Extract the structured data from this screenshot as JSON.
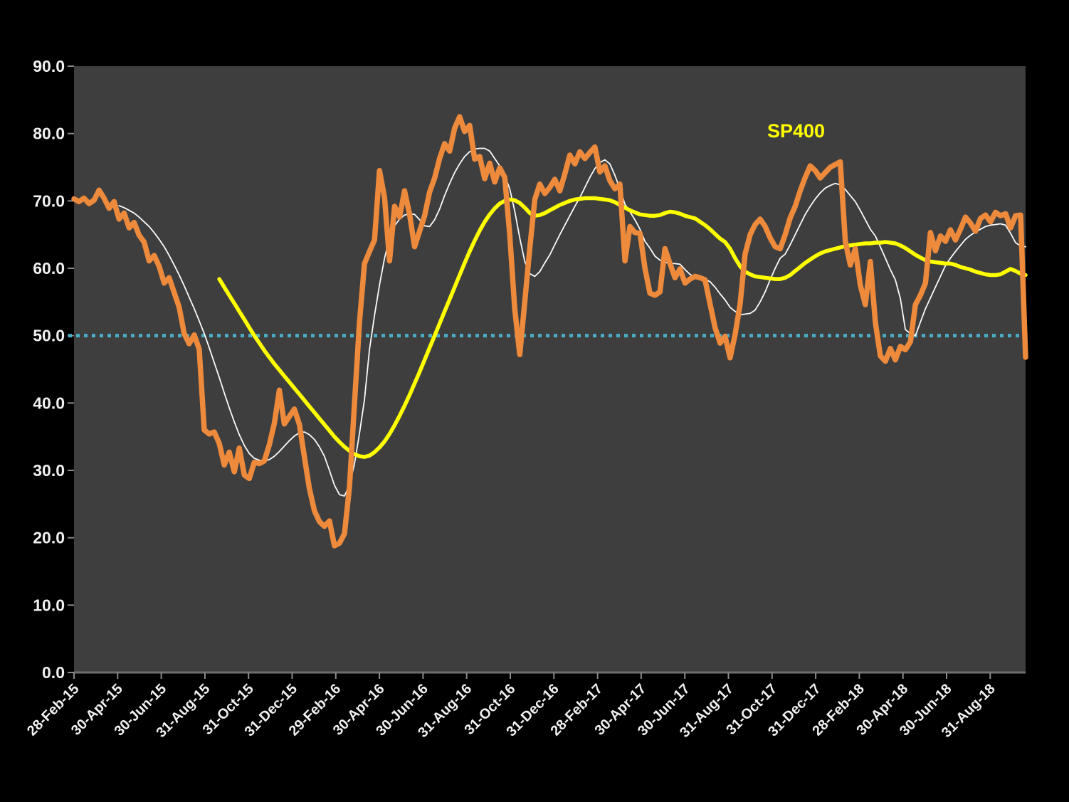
{
  "background": {
    "outer": "#000000",
    "plot": "#3E3E3E"
  },
  "axis": {
    "tick_color": "#8a8a8a",
    "axis_line_color": "#6e6e6e",
    "label_color": "#f0f0f0"
  },
  "chart_data": {
    "type": "line",
    "title": "",
    "xlabel": "",
    "ylabel": "",
    "x_unit": "weekly points starting 28-Feb-15",
    "ylim": [
      0,
      90
    ],
    "grid": false,
    "y_tick_labels": [
      "0.0",
      "10.0",
      "20.0",
      "30.0",
      "40.0",
      "50.0",
      "60.0",
      "70.0",
      "80.0",
      "90.0"
    ],
    "x_tick_labels": [
      "28-Feb-15",
      "30-Apr-15",
      "30-Jun-15",
      "31-Aug-15",
      "31-Oct-15",
      "31-Dec-15",
      "29-Feb-16",
      "30-Apr-16",
      "30-Jun-16",
      "31-Aug-16",
      "31-Oct-16",
      "31-Dec-16",
      "28-Feb-17",
      "30-Apr-17",
      "30-Jun-17",
      "31-Aug-17",
      "31-Oct-17",
      "31-Dec-17",
      "28-Feb-18",
      "30-Apr-18",
      "30-Jun-18",
      "31-Aug-18"
    ],
    "series_label": {
      "text": "SP400",
      "color": "#FFFF00"
    },
    "reference_line": {
      "value": 50.0,
      "color": "#4BACC6",
      "style": "dotted"
    },
    "series": [
      {
        "name": "orange_weekly_indicator",
        "color": "#ED8A3C",
        "stroke_width": 7.5,
        "start_week": 0,
        "values": [
          70.3,
          69.9,
          70.4,
          69.6,
          70.1,
          71.6,
          70.4,
          68.9,
          69.9,
          67.3,
          68.2,
          66.0,
          66.8,
          64.9,
          63.9,
          61.1,
          61.9,
          60.3,
          57.8,
          58.6,
          56.4,
          54.2,
          50.3,
          48.8,
          50.1,
          48.0,
          36.0,
          35.4,
          35.7,
          34.0,
          30.8,
          32.7,
          29.8,
          33.3,
          29.3,
          28.8,
          31.2,
          31.0,
          31.4,
          33.8,
          37.0,
          41.9,
          36.9,
          38.0,
          39.1,
          36.8,
          32.0,
          27.3,
          24.0,
          22.4,
          21.7,
          22.5,
          18.8,
          19.2,
          20.6,
          27.5,
          40.0,
          52.0,
          60.7,
          62.5,
          64.2,
          74.5,
          70.5,
          61.1,
          69.2,
          67.6,
          71.5,
          68.0,
          63.2,
          65.5,
          67.8,
          71.3,
          73.4,
          76.3,
          78.5,
          77.4,
          80.8,
          82.5,
          80.3,
          81.2,
          76.2,
          76.6,
          73.3,
          75.6,
          72.8,
          74.9,
          73.5,
          65.0,
          54.0,
          47.2,
          55.0,
          63.0,
          70.2,
          72.5,
          71.1,
          72.0,
          73.2,
          71.5,
          74.0,
          76.8,
          75.5,
          77.3,
          76.3,
          77.2,
          78.0,
          74.3,
          75.2,
          73.0,
          71.8,
          72.5,
          61.1,
          66.2,
          65.3,
          65.2,
          60.0,
          56.3,
          56.0,
          56.5,
          62.9,
          60.7,
          58.6,
          59.9,
          57.8,
          58.4,
          58.8,
          58.6,
          58.3,
          54.7,
          51.2,
          48.9,
          49.9,
          46.7,
          50.2,
          54.7,
          62.1,
          65.0,
          66.5,
          67.3,
          66.2,
          64.5,
          63.2,
          62.9,
          65.0,
          67.5,
          69.2,
          71.5,
          73.5,
          75.2,
          74.5,
          73.4,
          74.2,
          75.0,
          75.4,
          75.8,
          64.0,
          60.5,
          62.9,
          57.5,
          54.6,
          61.0,
          52.0,
          47.0,
          46.2,
          48.1,
          46.4,
          48.4,
          47.9,
          49.1,
          54.6,
          56.0,
          57.8,
          65.3,
          62.6,
          64.8,
          64.0,
          65.7,
          64.2,
          65.8,
          67.6,
          66.7,
          65.5,
          67.4,
          67.9,
          66.9,
          68.3,
          67.8,
          68.1,
          66.0,
          67.8,
          67.9,
          46.8
        ]
      },
      {
        "name": "white_moving_average",
        "color": "#FAFAFA",
        "stroke_width": 1.8,
        "start_week": 9,
        "values": [
          69.3,
          69.0,
          68.6,
          68.2,
          67.6,
          66.9,
          66.2,
          65.3,
          64.3,
          63.2,
          61.9,
          60.5,
          59.0,
          57.4,
          55.7,
          54.0,
          52.2,
          50.3,
          48.2,
          46.0,
          43.8,
          41.5,
          39.3,
          37.2,
          35.3,
          33.7,
          32.5,
          31.8,
          31.5,
          31.4,
          31.6,
          32.1,
          32.8,
          33.6,
          34.4,
          35.1,
          35.6,
          35.7,
          35.3,
          34.6,
          33.5,
          32.1,
          30.0,
          27.8,
          26.4,
          26.2,
          27.8,
          31.0,
          35.5,
          40.5,
          48.0,
          53.0,
          57.5,
          61.5,
          64.5,
          66.3,
          67.3,
          67.9,
          68.1,
          68.0,
          67.2,
          66.3,
          66.2,
          67.2,
          68.8,
          70.8,
          72.6,
          74.2,
          75.5,
          76.6,
          77.3,
          77.7,
          77.8,
          77.8,
          77.4,
          76.3,
          75.2,
          73.8,
          71.8,
          68.5,
          64.5,
          61.0,
          59.2,
          58.8,
          59.5,
          60.8,
          62.0,
          63.5,
          65.0,
          66.4,
          67.8,
          69.2,
          70.5,
          72.0,
          73.5,
          74.8,
          75.7,
          76.1,
          75.5,
          73.8,
          71.8,
          69.5,
          68.4,
          67.2,
          65.8,
          64.0,
          63.0,
          61.8,
          61.2,
          60.9,
          60.7,
          60.7,
          60.6,
          59.8,
          59.1,
          58.6,
          58.5,
          58.4,
          58.0,
          57.2,
          56.2,
          55.3,
          54.2,
          53.6,
          53.1,
          53.2,
          53.3,
          53.8,
          55.0,
          56.5,
          58.3,
          60.0,
          61.5,
          62.1,
          63.5,
          65.0,
          66.5,
          68.0,
          69.2,
          70.3,
          71.2,
          71.9,
          72.3,
          72.6,
          72.4,
          71.7,
          70.8,
          69.9,
          68.6,
          67.2,
          65.8,
          64.8,
          63.2,
          61.5,
          59.8,
          58.3,
          55.5,
          50.9,
          50.3,
          50.0,
          52.0,
          54.0,
          55.6,
          57.2,
          58.8,
          60.4,
          61.5,
          62.5,
          63.4,
          64.3,
          64.9,
          65.4,
          65.8,
          66.2,
          66.4,
          66.5,
          66.6,
          66.4,
          65.2,
          63.8,
          63.3,
          63.2
        ]
      },
      {
        "name": "sp400_long_average",
        "label": "SP400",
        "color": "#FFFF00",
        "stroke_width": 5.5,
        "start_week": 29,
        "values": [
          58.4,
          57.2,
          56.0,
          54.8,
          53.6,
          52.4,
          51.2,
          50.0,
          48.9,
          47.8,
          46.8,
          45.8,
          44.9,
          44.0,
          43.1,
          42.2,
          41.3,
          40.4,
          39.5,
          38.6,
          37.7,
          36.8,
          35.9,
          35.0,
          34.2,
          33.5,
          32.9,
          32.4,
          32.1,
          32.0,
          32.2,
          32.7,
          33.4,
          34.3,
          35.4,
          36.7,
          38.1,
          39.6,
          41.2,
          42.9,
          44.6,
          46.4,
          48.2,
          50.0,
          51.8,
          53.6,
          55.4,
          57.2,
          59.0,
          60.8,
          62.5,
          64.1,
          65.6,
          66.9,
          68.0,
          68.9,
          69.6,
          70.0,
          70.2,
          70.1,
          69.7,
          69.0,
          68.2,
          67.8,
          67.9,
          68.2,
          68.6,
          69.0,
          69.4,
          69.7,
          70.0,
          70.2,
          70.3,
          70.4,
          70.4,
          70.4,
          70.3,
          70.2,
          70.1,
          69.8,
          69.4,
          69.0,
          68.6,
          68.3,
          68.0,
          67.9,
          67.8,
          67.8,
          67.9,
          68.2,
          68.4,
          68.3,
          68.1,
          67.8,
          67.6,
          67.4,
          66.9,
          66.4,
          65.8,
          65.1,
          64.4,
          63.9,
          62.9,
          61.5,
          60.3,
          59.5,
          59.1,
          58.8,
          58.7,
          58.6,
          58.5,
          58.4,
          58.4,
          58.6,
          59.0,
          59.6,
          60.2,
          60.8,
          61.3,
          61.8,
          62.2,
          62.5,
          62.7,
          62.9,
          63.1,
          63.3,
          63.4,
          63.5,
          63.6,
          63.7,
          63.7,
          63.8,
          63.8,
          63.9,
          63.8,
          63.7,
          63.4,
          63.0,
          62.5,
          62.0,
          61.6,
          61.2,
          61.0,
          60.9,
          60.8,
          60.7,
          60.7,
          60.5,
          60.2,
          60.0,
          59.8,
          59.5,
          59.3,
          59.1,
          59.0,
          59.0,
          59.1,
          59.5,
          59.9,
          59.6,
          59.2,
          59.0
        ]
      }
    ]
  }
}
